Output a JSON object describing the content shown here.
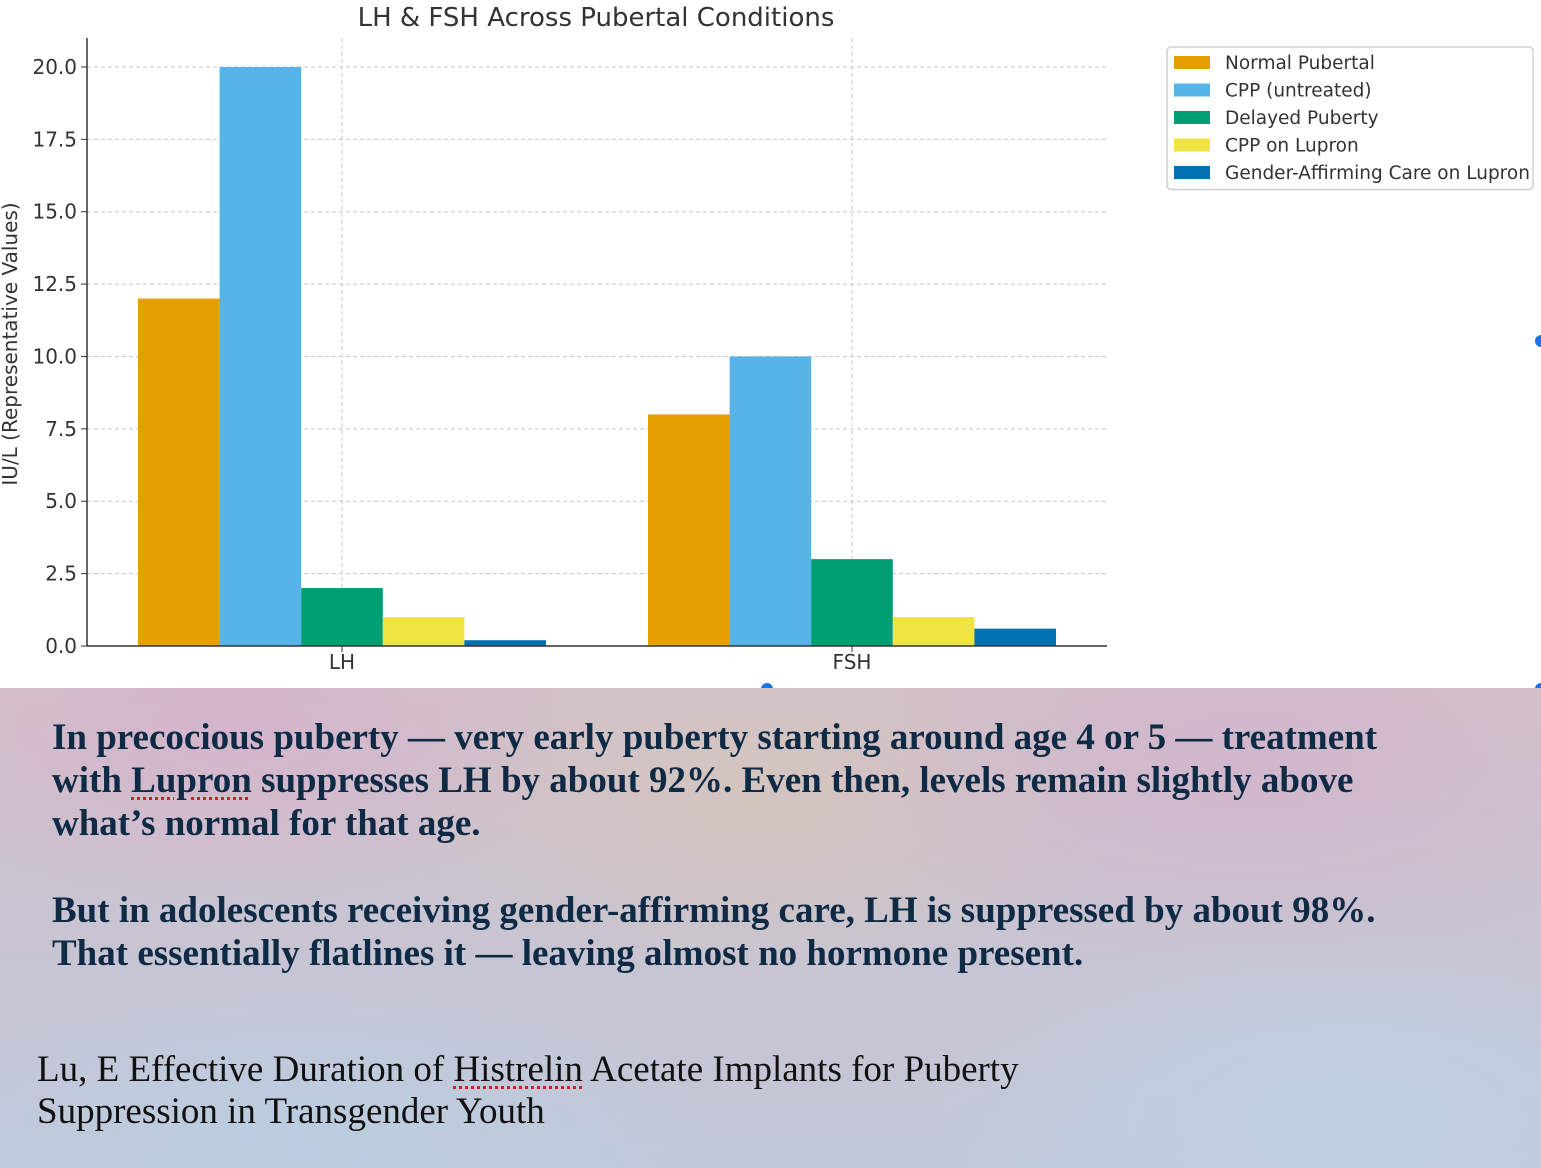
{
  "chart_data": {
    "type": "bar",
    "title": "LH & FSH Across Pubertal Conditions",
    "xlabel": "",
    "ylabel": "IU/L (Representative Values)",
    "categories": [
      "LH",
      "FSH"
    ],
    "ylim": [
      0,
      21
    ],
    "yticks": [
      "0.0",
      "2.5",
      "5.0",
      "7.5",
      "10.0",
      "12.5",
      "15.0",
      "17.5",
      "20.0"
    ],
    "grid": true,
    "legend_position": "top-right",
    "series": [
      {
        "name": "Normal Pubertal",
        "color": "#E69F00",
        "values": [
          12,
          8
        ]
      },
      {
        "name": "CPP (untreated)",
        "color": "#56B4E9",
        "values": [
          20,
          10
        ]
      },
      {
        "name": "Delayed Puberty",
        "color": "#009E73",
        "values": [
          2,
          3
        ]
      },
      {
        "name": "CPP on Lupron",
        "color": "#F0E442",
        "values": [
          1,
          1
        ]
      },
      {
        "name": "Gender-Affirming Care on Lupron",
        "color": "#0072B2",
        "values": [
          0.2,
          0.6
        ]
      }
    ]
  },
  "slide": {
    "para1_pre": "In precocious puberty — very early puberty starting around age 4 or 5 — treatment with ",
    "para1_flag": "Lupron",
    "para1_post": " suppresses LH by about 92%. Even then, levels remain slightly above what’s normal for that age.",
    "para2": "But in adolescents receiving gender-affirming care, LH is suppressed by about 98%. That essentially flatlines it — leaving almost no hormone present.",
    "citation_pre": "Lu, E Effective Duration of ",
    "citation_flag": "Histrelin",
    "citation_post": " Acetate Implants for Puberty Suppression in Transgender Youth"
  },
  "colors": {
    "slide_text": "#0e2a45",
    "selection_handle": "#1a73e8"
  }
}
